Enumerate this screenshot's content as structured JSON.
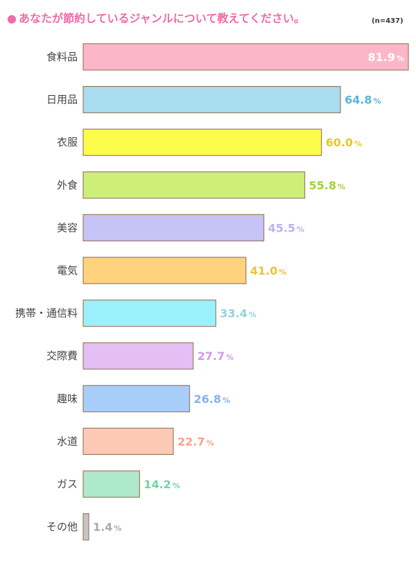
{
  "title": "あなたが節約しているジャンルについて教えてください。",
  "title_bullet": "●",
  "sample_note": "(n=437)",
  "colors": {
    "title": "#f06ca6",
    "bar_border": "#9a7c62"
  },
  "chart_data": {
    "type": "bar",
    "orientation": "horizontal",
    "title": "あなたが節約しているジャンルについて教えてください。",
    "note": "(n=437)",
    "unit": "%",
    "xlim": [
      0,
      100
    ],
    "grid": false,
    "categories": [
      "食料品",
      "日用品",
      "衣服",
      "外食",
      "美容",
      "電気",
      "携帯・通信料",
      "交際費",
      "趣味",
      "水道",
      "ガス",
      "その他"
    ],
    "values": [
      81.9,
      64.8,
      60.0,
      55.8,
      45.5,
      41.0,
      33.4,
      27.7,
      26.8,
      22.7,
      14.2,
      1.4
    ],
    "value_labels": [
      "81.9",
      "64.8",
      "60.0",
      "55.8",
      "45.5",
      "41.0",
      "33.4",
      "27.7",
      "26.8",
      "22.7",
      "14.2",
      "1.4"
    ],
    "bar_colors": [
      "#fbb7c8",
      "#a9dcef",
      "#fcfc4a",
      "#cdef7a",
      "#c6c4f6",
      "#ffd27e",
      "#9af1fb",
      "#e3bff3",
      "#a9cdf9",
      "#fccab4",
      "#aee9cc",
      "#c6c6c6"
    ],
    "label_colors": [
      "#ffffff",
      "#5ab4d7",
      "#e4cc1f",
      "#9fd13c",
      "#b8b3ee",
      "#ecc236",
      "#8fd3db",
      "#cf9ae6",
      "#86b2ec",
      "#f6a28a",
      "#6fd6a8",
      "#aaaaaa"
    ]
  }
}
